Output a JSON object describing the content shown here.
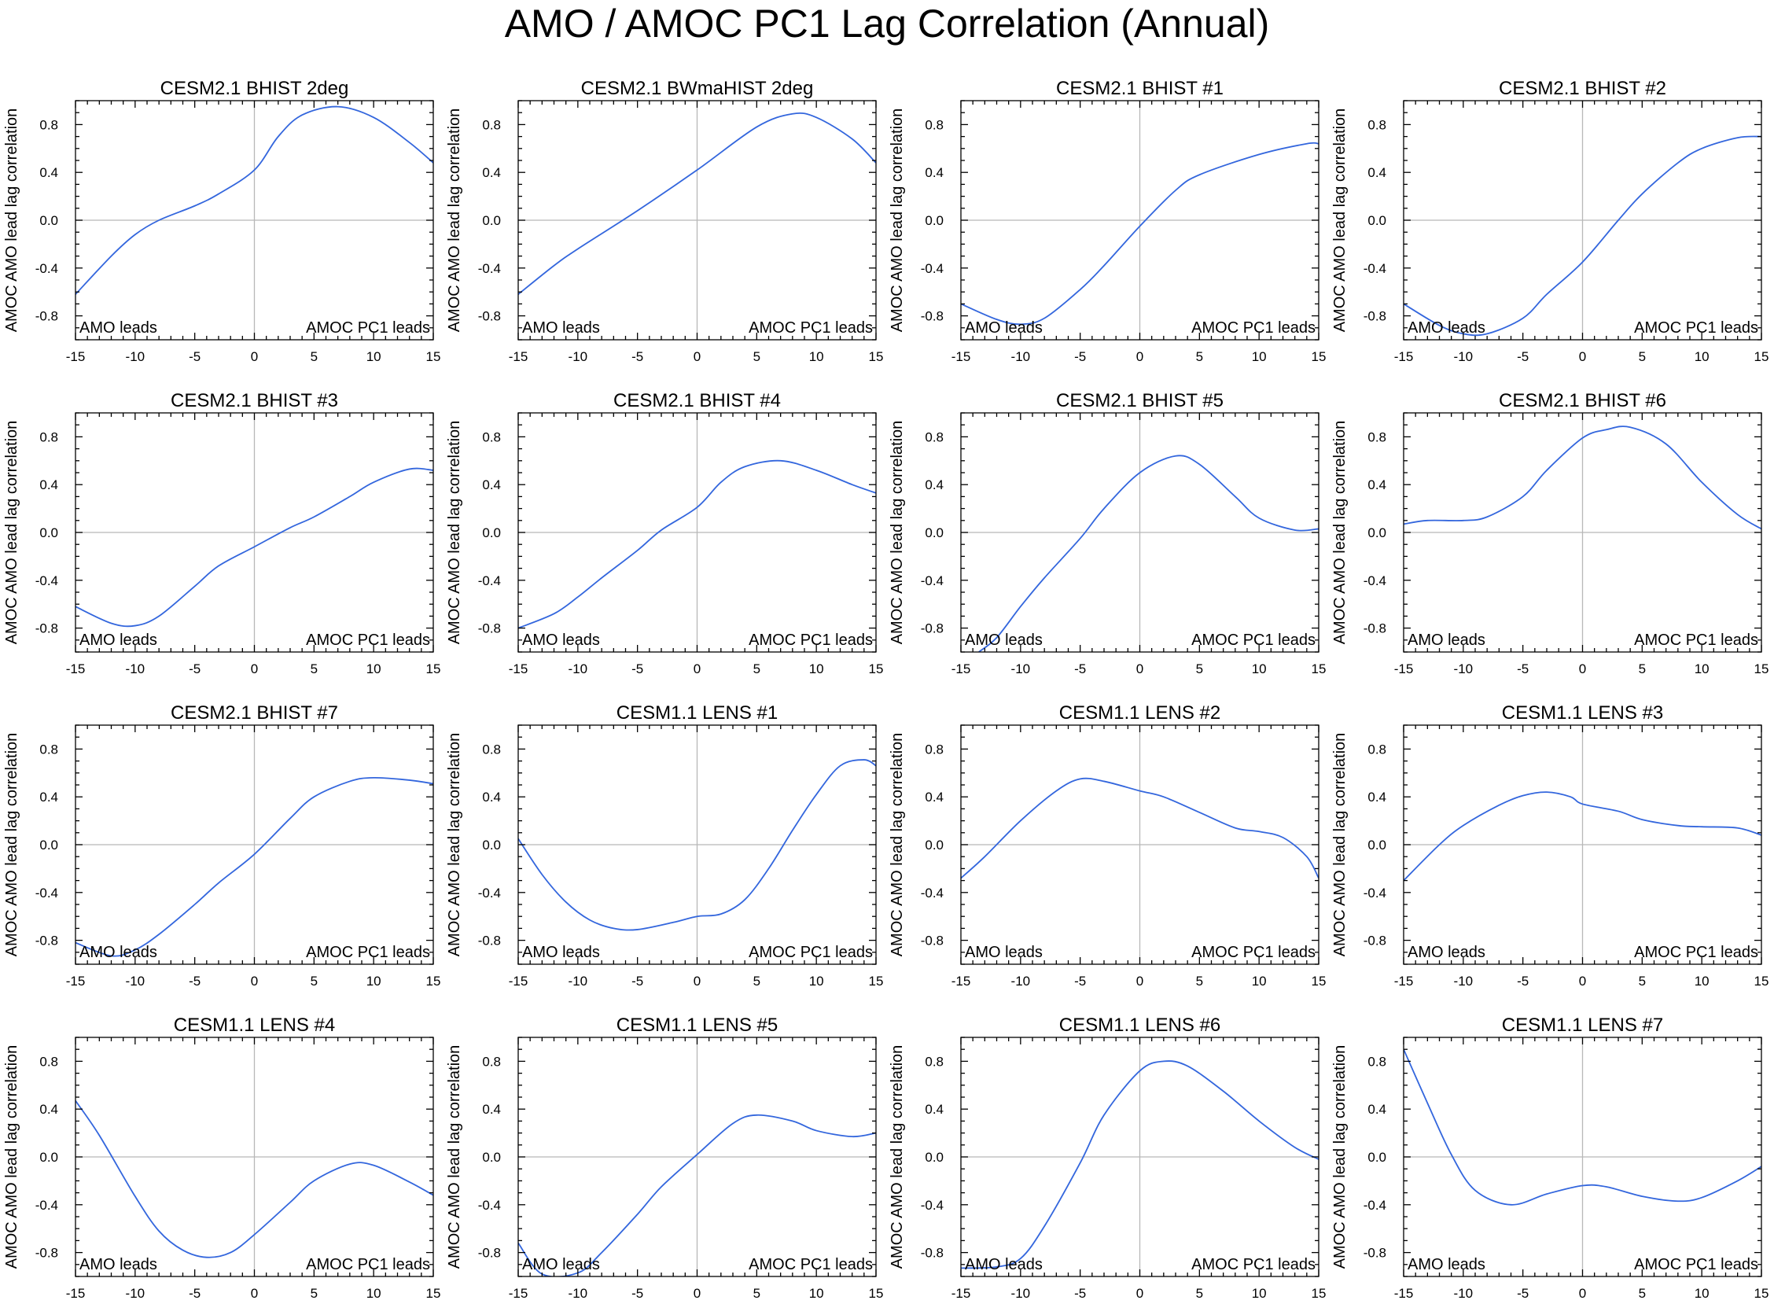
{
  "title": "AMO / AMOC PC1 Lag Correlation (Annual)",
  "colors": {
    "line": "#3366dd",
    "zero_line": "#b8b8b8",
    "axis": "#000000"
  },
  "chart_data": [
    {
      "type": "line",
      "title": "CESM2.1 BHIST 2deg",
      "ylabel": "AMOC AMO lead lag correlation",
      "xlim": [
        -15,
        15
      ],
      "ylim": [
        -1,
        1
      ],
      "x_ticks": [
        -15,
        -10,
        -5,
        0,
        5,
        10,
        15
      ],
      "y_ticks": [
        0.8,
        0.4,
        0.0,
        -0.4,
        -0.8
      ],
      "y_tick_labels": [
        "0.8",
        "0.4",
        "0.0",
        "-0.4",
        "-0.8"
      ],
      "left_label": "AMO leads",
      "right_label": "AMOC PC1 leads",
      "x": [
        -15,
        -12,
        -10,
        -8,
        -5,
        -3,
        0,
        2,
        4,
        7,
        10,
        13,
        15
      ],
      "y": [
        -0.62,
        -0.3,
        -0.12,
        0.0,
        0.12,
        0.22,
        0.42,
        0.7,
        0.88,
        0.95,
        0.86,
        0.65,
        0.48
      ]
    },
    {
      "type": "line",
      "title": "CESM2.1 BWmaHIST 2deg",
      "ylabel": "AMOC AMO lead lag correlation",
      "xlim": [
        -15,
        15
      ],
      "ylim": [
        -1,
        1
      ],
      "x_ticks": [
        -15,
        -10,
        -5,
        0,
        5,
        10,
        15
      ],
      "y_ticks": [
        0.8,
        0.4,
        0.0,
        -0.4,
        -0.8
      ],
      "y_tick_labels": [
        "0.8",
        "0.4",
        "0.0",
        "-0.4",
        "-0.8"
      ],
      "left_label": "AMO leads",
      "right_label": "AMOC PC1 leads",
      "x": [
        -15,
        -12,
        -10,
        -5,
        0,
        5,
        8,
        10,
        13,
        15
      ],
      "y": [
        -0.62,
        -0.38,
        -0.24,
        0.08,
        0.42,
        0.78,
        0.89,
        0.86,
        0.68,
        0.48
      ]
    },
    {
      "type": "line",
      "title": "CESM2.1 BHIST #1",
      "ylabel": "AMOC AMO lead lag correlation",
      "xlim": [
        -15,
        15
      ],
      "ylim": [
        -1,
        1
      ],
      "x_ticks": [
        -15,
        -10,
        -5,
        0,
        5,
        10,
        15
      ],
      "y_ticks": [
        0.8,
        0.4,
        0.0,
        -0.4,
        -0.8
      ],
      "y_tick_labels": [
        "0.8",
        "0.4",
        "0.0",
        "-0.4",
        "-0.8"
      ],
      "left_label": "AMO leads",
      "right_label": "AMOC PC1 leads",
      "x": [
        -15,
        -12,
        -10,
        -8,
        -5,
        -3,
        0,
        3,
        5,
        10,
        14,
        15
      ],
      "y": [
        -0.7,
        -0.83,
        -0.87,
        -0.82,
        -0.58,
        -0.38,
        -0.05,
        0.25,
        0.38,
        0.55,
        0.64,
        0.64
      ]
    },
    {
      "type": "line",
      "title": "CESM2.1 BHIST #2",
      "ylabel": "AMOC AMO lead lag correlation",
      "xlim": [
        -15,
        15
      ],
      "ylim": [
        -1,
        1
      ],
      "x_ticks": [
        -15,
        -10,
        -5,
        0,
        5,
        10,
        15
      ],
      "y_ticks": [
        0.8,
        0.4,
        0.0,
        -0.4,
        -0.8
      ],
      "y_tick_labels": [
        "0.8",
        "0.4",
        "0.0",
        "-0.4",
        "-0.8"
      ],
      "left_label": "AMO leads",
      "right_label": "AMOC PC1 leads",
      "x": [
        -15,
        -12,
        -10,
        -8,
        -5,
        -3,
        0,
        3,
        5,
        8,
        10,
        13,
        15
      ],
      "y": [
        -0.7,
        -0.88,
        -0.95,
        -0.95,
        -0.82,
        -0.62,
        -0.35,
        0.0,
        0.22,
        0.48,
        0.6,
        0.69,
        0.7
      ]
    },
    {
      "type": "line",
      "title": "CESM2.1 BHIST #3",
      "ylabel": "AMOC AMO lead lag correlation",
      "xlim": [
        -15,
        15
      ],
      "ylim": [
        -1,
        1
      ],
      "x_ticks": [
        -15,
        -10,
        -5,
        0,
        5,
        10,
        15
      ],
      "y_ticks": [
        0.8,
        0.4,
        0.0,
        -0.4,
        -0.8
      ],
      "y_tick_labels": [
        "0.8",
        "0.4",
        "0.0",
        "-0.4",
        "-0.8"
      ],
      "left_label": "AMO leads",
      "right_label": "AMOC PC1 leads",
      "x": [
        -15,
        -12,
        -10,
        -8,
        -5,
        -3,
        0,
        3,
        5,
        8,
        10,
        13,
        15
      ],
      "y": [
        -0.62,
        -0.76,
        -0.78,
        -0.7,
        -0.45,
        -0.28,
        -0.12,
        0.04,
        0.13,
        0.3,
        0.42,
        0.53,
        0.52
      ]
    },
    {
      "type": "line",
      "title": "CESM2.1 BHIST #4",
      "ylabel": "AMOC AMO lead lag correlation",
      "xlim": [
        -15,
        15
      ],
      "ylim": [
        -1,
        1
      ],
      "x_ticks": [
        -15,
        -10,
        -5,
        0,
        5,
        10,
        15
      ],
      "y_ticks": [
        0.8,
        0.4,
        0.0,
        -0.4,
        -0.8
      ],
      "y_tick_labels": [
        "0.8",
        "0.4",
        "0.0",
        "-0.4",
        "-0.8"
      ],
      "left_label": "AMO leads",
      "right_label": "AMOC PC1 leads",
      "x": [
        -15,
        -12,
        -10,
        -8,
        -5,
        -3,
        0,
        2,
        4,
        7,
        10,
        13,
        15
      ],
      "y": [
        -0.8,
        -0.68,
        -0.54,
        -0.38,
        -0.15,
        0.02,
        0.21,
        0.42,
        0.55,
        0.6,
        0.52,
        0.4,
        0.33
      ]
    },
    {
      "type": "line",
      "title": "CESM2.1 BHIST #5",
      "ylabel": "AMOC AMO lead lag correlation",
      "xlim": [
        -15,
        15
      ],
      "ylim": [
        -1,
        1
      ],
      "x_ticks": [
        -15,
        -10,
        -5,
        0,
        5,
        10,
        15
      ],
      "y_ticks": [
        0.8,
        0.4,
        0.0,
        -0.4,
        -0.8
      ],
      "y_tick_labels": [
        "0.8",
        "0.4",
        "0.0",
        "-0.4",
        "-0.8"
      ],
      "left_label": "AMO leads",
      "right_label": "AMOC PC1 leads",
      "x": [
        -13.5,
        -12,
        -10,
        -8,
        -5,
        -3,
        0,
        3,
        5,
        8,
        10,
        13,
        15
      ],
      "y": [
        -1.0,
        -0.88,
        -0.62,
        -0.38,
        -0.05,
        0.2,
        0.5,
        0.64,
        0.57,
        0.3,
        0.12,
        0.02,
        0.03
      ]
    },
    {
      "type": "line",
      "title": "CESM2.1 BHIST #6",
      "ylabel": "AMOC AMO lead lag correlation",
      "xlim": [
        -15,
        15
      ],
      "ylim": [
        -1,
        1
      ],
      "x_ticks": [
        -15,
        -10,
        -5,
        0,
        5,
        10,
        15
      ],
      "y_ticks": [
        0.8,
        0.4,
        0.0,
        -0.4,
        -0.8
      ],
      "y_tick_labels": [
        "0.8",
        "0.4",
        "0.0",
        "-0.4",
        "-0.8"
      ],
      "left_label": "AMO leads",
      "right_label": "AMOC PC1 leads",
      "x": [
        -15,
        -13,
        -10,
        -8,
        -5,
        -3,
        0,
        2,
        4,
        7,
        10,
        13,
        15
      ],
      "y": [
        0.07,
        0.1,
        0.1,
        0.13,
        0.3,
        0.52,
        0.79,
        0.86,
        0.88,
        0.74,
        0.42,
        0.15,
        0.03
      ]
    },
    {
      "type": "line",
      "title": "CESM2.1 BHIST #7",
      "ylabel": "AMOC AMO lead lag correlation",
      "xlim": [
        -15,
        15
      ],
      "ylim": [
        -1,
        1
      ],
      "x_ticks": [
        -15,
        -10,
        -5,
        0,
        5,
        10,
        15
      ],
      "y_ticks": [
        0.8,
        0.4,
        0.0,
        -0.4,
        -0.8
      ],
      "y_tick_labels": [
        "0.8",
        "0.4",
        "0.0",
        "-0.4",
        "-0.8"
      ],
      "left_label": "AMO leads",
      "right_label": "AMOC PC1 leads",
      "x": [
        -15,
        -12,
        -10,
        -8,
        -5,
        -3,
        0,
        3,
        5,
        8,
        10,
        13,
        15
      ],
      "y": [
        -0.82,
        -0.93,
        -0.88,
        -0.75,
        -0.5,
        -0.32,
        -0.08,
        0.22,
        0.4,
        0.53,
        0.56,
        0.54,
        0.51
      ]
    },
    {
      "type": "line",
      "title": "CESM1.1 LENS #1",
      "ylabel": "AMOC AMO lead lag correlation",
      "xlim": [
        -15,
        15
      ],
      "ylim": [
        -1,
        1
      ],
      "x_ticks": [
        -15,
        -10,
        -5,
        0,
        5,
        10,
        15
      ],
      "y_ticks": [
        0.8,
        0.4,
        0.0,
        -0.4,
        -0.8
      ],
      "y_tick_labels": [
        "0.8",
        "0.4",
        "0.0",
        "-0.4",
        "-0.8"
      ],
      "left_label": "AMO leads",
      "right_label": "AMOC PC1 leads",
      "x": [
        -15,
        -13,
        -11,
        -9,
        -7,
        -5,
        -2,
        0,
        2,
        4,
        6,
        8,
        10,
        12,
        14,
        15
      ],
      "y": [
        0.05,
        -0.25,
        -0.48,
        -0.63,
        -0.7,
        -0.71,
        -0.65,
        -0.6,
        -0.58,
        -0.46,
        -0.2,
        0.12,
        0.42,
        0.66,
        0.71,
        0.66
      ]
    },
    {
      "type": "line",
      "title": "CESM1.1 LENS #2",
      "ylabel": "AMOC AMO lead lag correlation",
      "xlim": [
        -15,
        15
      ],
      "ylim": [
        -1,
        1
      ],
      "x_ticks": [
        -15,
        -10,
        -5,
        0,
        5,
        10,
        15
      ],
      "y_ticks": [
        0.8,
        0.4,
        0.0,
        -0.4,
        -0.8
      ],
      "y_tick_labels": [
        "0.8",
        "0.4",
        "0.0",
        "-0.4",
        "-0.8"
      ],
      "left_label": "AMO leads",
      "right_label": "AMOC PC1 leads",
      "x": [
        -15,
        -13,
        -10,
        -7,
        -5,
        -3,
        0,
        2,
        5,
        8,
        10,
        12,
        14,
        15
      ],
      "y": [
        -0.28,
        -0.1,
        0.2,
        0.45,
        0.55,
        0.53,
        0.45,
        0.4,
        0.27,
        0.14,
        0.11,
        0.06,
        -0.1,
        -0.28
      ]
    },
    {
      "type": "line",
      "title": "CESM1.1 LENS #3",
      "ylabel": "AMOC AMO lead lag correlation",
      "xlim": [
        -15,
        15
      ],
      "ylim": [
        -1,
        1
      ],
      "x_ticks": [
        -15,
        -10,
        -5,
        0,
        5,
        10,
        15
      ],
      "y_ticks": [
        0.8,
        0.4,
        0.0,
        -0.4,
        -0.8
      ],
      "y_tick_labels": [
        "0.8",
        "0.4",
        "0.0",
        "-0.4",
        "-0.8"
      ],
      "left_label": "AMO leads",
      "right_label": "AMOC PC1 leads",
      "x": [
        -15,
        -12,
        -10,
        -7,
        -5,
        -3,
        -1,
        0,
        3,
        5,
        8,
        10,
        13,
        15
      ],
      "y": [
        -0.3,
        0.0,
        0.16,
        0.33,
        0.41,
        0.44,
        0.4,
        0.34,
        0.28,
        0.21,
        0.16,
        0.15,
        0.14,
        0.08
      ]
    },
    {
      "type": "line",
      "title": "CESM1.1 LENS #4",
      "ylabel": "AMOC AMO lead lag correlation",
      "xlim": [
        -15,
        15
      ],
      "ylim": [
        -1,
        1
      ],
      "x_ticks": [
        -15,
        -10,
        -5,
        0,
        5,
        10,
        15
      ],
      "y_ticks": [
        0.8,
        0.4,
        0.0,
        -0.4,
        -0.8
      ],
      "y_tick_labels": [
        "0.8",
        "0.4",
        "0.0",
        "-0.4",
        "-0.8"
      ],
      "left_label": "AMO leads",
      "right_label": "AMOC PC1 leads",
      "x": [
        -15,
        -13,
        -10,
        -8,
        -6,
        -4,
        -2,
        0,
        3,
        5,
        8,
        10,
        13,
        15
      ],
      "y": [
        0.47,
        0.18,
        -0.33,
        -0.62,
        -0.78,
        -0.84,
        -0.8,
        -0.65,
        -0.38,
        -0.2,
        -0.06,
        -0.07,
        -0.21,
        -0.32
      ]
    },
    {
      "type": "line",
      "title": "CESM1.1 LENS #5",
      "ylabel": "AMOC AMO lead lag correlation",
      "xlim": [
        -15,
        15
      ],
      "ylim": [
        -1,
        1
      ],
      "x_ticks": [
        -15,
        -10,
        -5,
        0,
        5,
        10,
        15
      ],
      "y_ticks": [
        0.8,
        0.4,
        0.0,
        -0.4,
        -0.8
      ],
      "y_tick_labels": [
        "0.8",
        "0.4",
        "0.0",
        "-0.4",
        "-0.8"
      ],
      "left_label": "AMO leads",
      "right_label": "AMOC PC1 leads",
      "x": [
        -15,
        -13,
        -10,
        -8,
        -5,
        -3,
        0,
        3,
        5,
        8,
        10,
        13,
        15
      ],
      "y": [
        -0.72,
        -0.98,
        -0.97,
        -0.8,
        -0.48,
        -0.25,
        0.02,
        0.28,
        0.35,
        0.3,
        0.22,
        0.17,
        0.2
      ]
    },
    {
      "type": "line",
      "title": "CESM1.1 LENS #6",
      "ylabel": "AMOC AMO lead lag correlation",
      "xlim": [
        -15,
        15
      ],
      "ylim": [
        -1,
        1
      ],
      "x_ticks": [
        -15,
        -10,
        -5,
        0,
        5,
        10,
        15
      ],
      "y_ticks": [
        0.8,
        0.4,
        0.0,
        -0.4,
        -0.8
      ],
      "y_tick_labels": [
        "0.8",
        "0.4",
        "0.0",
        "-0.4",
        "-0.8"
      ],
      "left_label": "AMO leads",
      "right_label": "AMOC PC1 leads",
      "x": [
        -15,
        -12,
        -10,
        -8,
        -5,
        -3,
        0,
        2,
        4,
        7,
        10,
        13,
        15
      ],
      "y": [
        -0.93,
        -0.92,
        -0.85,
        -0.58,
        -0.05,
        0.35,
        0.72,
        0.8,
        0.76,
        0.55,
        0.3,
        0.08,
        -0.02
      ]
    },
    {
      "type": "line",
      "title": "CESM1.1 LENS #7",
      "ylabel": "AMOC AMO lead lag correlation",
      "xlim": [
        -15,
        15
      ],
      "ylim": [
        -1,
        1
      ],
      "x_ticks": [
        -15,
        -10,
        -5,
        0,
        5,
        10,
        15
      ],
      "y_ticks": [
        0.8,
        0.4,
        0.0,
        -0.4,
        -0.8
      ],
      "y_tick_labels": [
        "0.8",
        "0.4",
        "0.0",
        "-0.4",
        "-0.8"
      ],
      "left_label": "AMO leads",
      "right_label": "AMOC PC1 leads",
      "x": [
        -15,
        -13,
        -11,
        -9,
        -6,
        -3,
        0,
        2,
        5,
        8,
        10,
        13,
        15
      ],
      "y": [
        0.9,
        0.45,
        0.02,
        -0.28,
        -0.4,
        -0.31,
        -0.24,
        -0.25,
        -0.33,
        -0.37,
        -0.34,
        -0.2,
        -0.08
      ]
    }
  ]
}
